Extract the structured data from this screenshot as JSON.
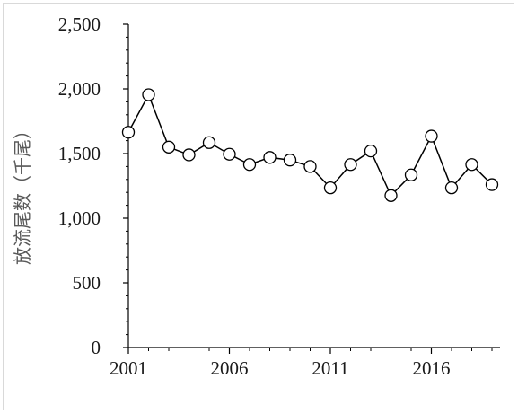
{
  "chart_data": {
    "type": "line",
    "title": "",
    "xlabel": "",
    "ylabel": "放流尾数（千尾）",
    "x": [
      2001,
      2002,
      2003,
      2004,
      2005,
      2006,
      2007,
      2008,
      2009,
      2010,
      2011,
      2012,
      2013,
      2014,
      2015,
      2016,
      2017,
      2018,
      2019
    ],
    "series": [
      {
        "values": [
          1665,
          1955,
          1550,
          1490,
          1585,
          1495,
          1415,
          1470,
          1450,
          1400,
          1235,
          1415,
          1520,
          1175,
          1335,
          1635,
          1235,
          1415,
          1260
        ]
      }
    ],
    "xticks": [
      "2001",
      "2006",
      "2011",
      "2016"
    ],
    "xtick_values": [
      2001,
      2006,
      2011,
      2016
    ],
    "yticks": [
      "0",
      "500",
      "1,000",
      "1,500",
      "2,000",
      "2,500"
    ],
    "ytick_values": [
      0,
      500,
      1000,
      1500,
      2000,
      2500
    ],
    "xlim": [
      2001,
      2019.4
    ],
    "ylim": [
      0,
      2500
    ],
    "grid": false,
    "legend": "none",
    "colors": {
      "line": "#000000",
      "marker_fill": "#ffffff",
      "marker_stroke": "#000000",
      "axis": "#000000"
    }
  }
}
